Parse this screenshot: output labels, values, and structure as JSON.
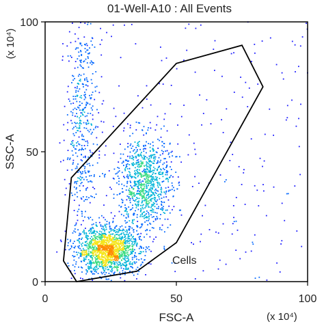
{
  "chart_data": {
    "type": "scatter",
    "title": "01-Well-A10 : All Events",
    "xlabel": "FSC-A",
    "ylabel": "SSC-A",
    "x_multiplier": "(x 10⁴)",
    "y_multiplier": "(x 10⁴)",
    "xlim": [
      0,
      100
    ],
    "ylim": [
      0,
      100
    ],
    "x_ticks": [
      {
        "value": 0,
        "label": "0"
      },
      {
        "value": 50,
        "label": "50"
      },
      {
        "value": 100,
        "label": "100"
      }
    ],
    "y_ticks": [
      {
        "value": 0,
        "label": "0"
      },
      {
        "value": 50,
        "label": "50"
      },
      {
        "value": 100,
        "label": "100"
      }
    ],
    "grid": false,
    "gate": {
      "label": "Cells",
      "vertices": [
        [
          10,
          40
        ],
        [
          50,
          84
        ],
        [
          75,
          91
        ],
        [
          83,
          75
        ],
        [
          50,
          15
        ],
        [
          35,
          4
        ],
        [
          12,
          0
        ],
        [
          7,
          8
        ],
        [
          10,
          40
        ]
      ]
    },
    "populations": [
      {
        "name": "main",
        "center": [
          24,
          12
        ],
        "spread": [
          6,
          4.5
        ],
        "density": "high"
      },
      {
        "name": "secondary",
        "center": [
          38,
          38
        ],
        "spread": [
          5,
          9
        ],
        "density": "medium"
      },
      {
        "name": "vertical-streak",
        "center": [
          14,
          62
        ],
        "spread": [
          3,
          22
        ],
        "density": "low"
      },
      {
        "name": "background",
        "range_x": [
          10,
          100
        ],
        "range_y": [
          0,
          100
        ],
        "density": "very-low"
      }
    ],
    "density_colors": [
      "#1a1aff",
      "#0066ff",
      "#00b4d8",
      "#3ddc84",
      "#f5e51b",
      "#ff8c00"
    ]
  }
}
